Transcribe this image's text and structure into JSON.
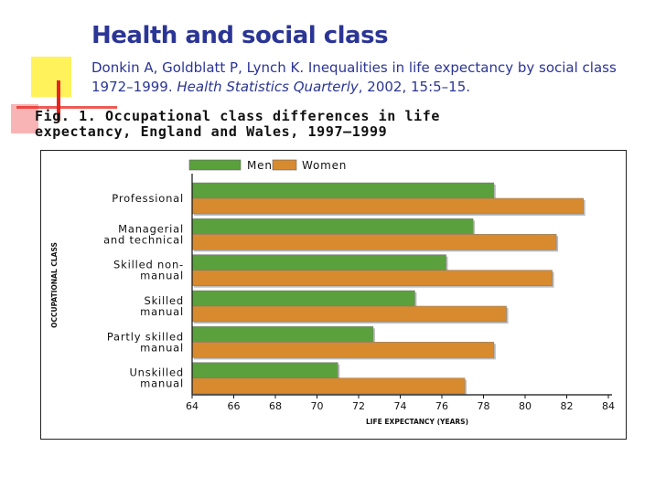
{
  "slide": {
    "title": "Health and social class",
    "citation_plain": "Donkin A, Goldblatt P, Lynch K. Inequalities in life expectancy by social class 1972–1999. ",
    "citation_journal": "Health Statistics Quarterly",
    "citation_tail": ", 2002, 15:5–15."
  },
  "figure": {
    "caption_line1": "Fig. 1. Occupational class differences in life",
    "caption_line2": "expectancy, England and Wales, 1997–1999"
  },
  "colors": {
    "men": "#5aa03c",
    "women": "#d88a2e",
    "title": "#2b3595"
  },
  "chart_data": {
    "type": "bar",
    "orientation": "horizontal",
    "title": "Occupational class differences in life expectancy, England and Wales, 1997–1999",
    "xlabel": "LIFE EXPECTANCY (YEARS)",
    "ylabel": "OCCUPATIONAL CLASS",
    "xlim": [
      64,
      84
    ],
    "xticks": [
      64,
      66,
      68,
      70,
      72,
      74,
      76,
      78,
      80,
      82,
      84
    ],
    "legend_position": "top",
    "categories": [
      [
        "Professional"
      ],
      [
        "Managerial",
        "and technical"
      ],
      [
        "Skilled non-",
        "manual"
      ],
      [
        "Skilled",
        "manual"
      ],
      [
        "Partly skilled",
        "manual"
      ],
      [
        "Unskilled",
        "manual"
      ]
    ],
    "series": [
      {
        "name": "Men",
        "values": [
          78.5,
          77.5,
          76.2,
          74.7,
          72.7,
          71.0
        ]
      },
      {
        "name": "Women",
        "values": [
          82.8,
          81.5,
          81.3,
          79.1,
          78.5,
          77.1
        ]
      }
    ]
  }
}
